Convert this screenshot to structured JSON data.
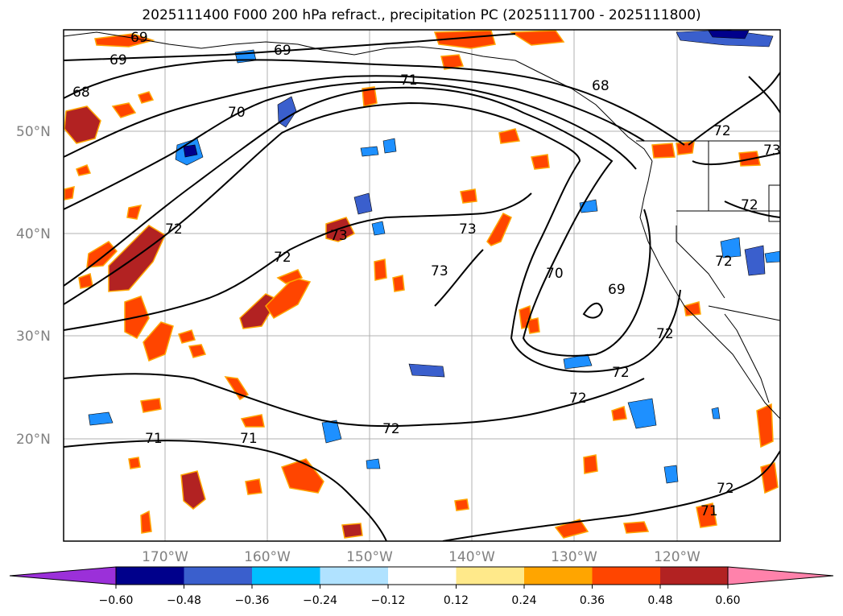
{
  "title": "2025111400 F000 200 hPa refract., precipitation PC (2025111700 - 2025111800)",
  "map": {
    "lon_labels": [
      "170°W",
      "160°W",
      "150°W",
      "140°W",
      "130°W",
      "120°W"
    ],
    "lat_labels": [
      "50°N",
      "40°N",
      "30°N",
      "20°N"
    ],
    "contour_labels": [
      "69",
      "69",
      "69",
      "68",
      "68",
      "70",
      "71",
      "72",
      "72",
      "72",
      "72",
      "72",
      "72",
      "73",
      "73",
      "73",
      "70",
      "69",
      "72",
      "71",
      "71",
      "71",
      "72",
      "72",
      "73",
      "72"
    ]
  },
  "colorbar": {
    "colors": [
      "#9b30d9",
      "#00008b",
      "#3a5fcd",
      "#00bfff",
      "#b0e2ff",
      "#ffffff",
      "#ffe98a",
      "#ffa500",
      "#ff4500",
      "#b22222",
      "#ff82ab"
    ],
    "labels": [
      "−0.60",
      "−0.48",
      "−0.36",
      "−0.24",
      "−0.12",
      "0.12",
      "0.24",
      "0.36",
      "0.48",
      "0.60"
    ]
  },
  "colors": {
    "positive_precip": "#ff4500",
    "negative_precip": "#1e90ff",
    "grid": "#b0b0b0",
    "contour": "#000000"
  }
}
